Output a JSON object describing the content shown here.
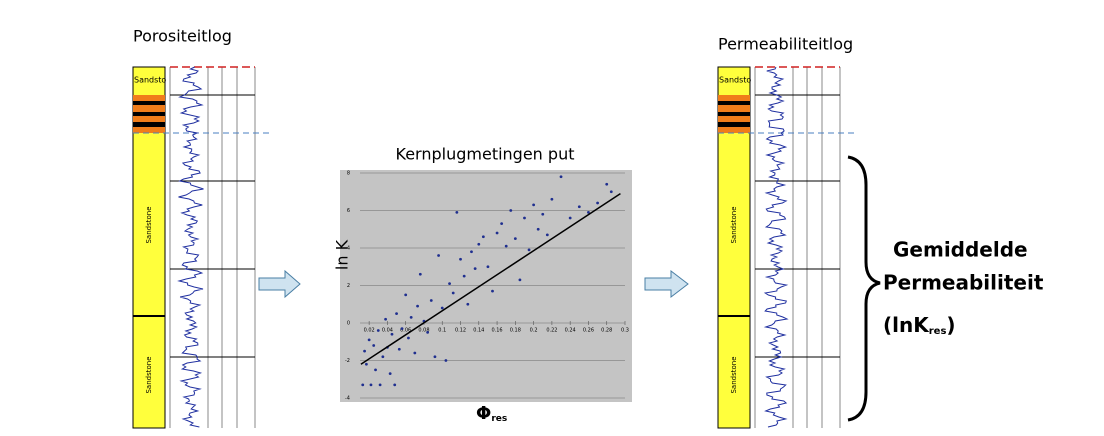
{
  "left_log": {
    "title": "Porositeitlog",
    "labels": [
      "Sandsto",
      "Sandstone",
      "Sandstone"
    ]
  },
  "right_log": {
    "title": "Permeabiliteitlog",
    "labels": [
      "Sandsto",
      "Sandstone",
      "Sandstone"
    ]
  },
  "chart_data": {
    "type": "scatter",
    "title": "Kernplugmetingen put",
    "y_label": "ln K",
    "x_label": "Φ",
    "x_label_sub": "res",
    "x": [
      0.013,
      0.015,
      0.017,
      0.02,
      0.022,
      0.025,
      0.027,
      0.03,
      0.032,
      0.035,
      0.038,
      0.04,
      0.043,
      0.045,
      0.048,
      0.05,
      0.053,
      0.056,
      0.06,
      0.063,
      0.066,
      0.07,
      0.073,
      0.076,
      0.08,
      0.084,
      0.088,
      0.092,
      0.096,
      0.1,
      0.104,
      0.108,
      0.112,
      0.116,
      0.12,
      0.124,
      0.128,
      0.132,
      0.136,
      0.14,
      0.145,
      0.15,
      0.155,
      0.16,
      0.165,
      0.17,
      0.175,
      0.18,
      0.185,
      0.19,
      0.195,
      0.2,
      0.205,
      0.21,
      0.215,
      0.22,
      0.23,
      0.24,
      0.25,
      0.26,
      0.27,
      0.28,
      0.285
    ],
    "values": [
      -3.3,
      -1.5,
      -2.2,
      -0.9,
      -3.3,
      -1.2,
      -2.5,
      -0.4,
      -3.3,
      -1.8,
      0.2,
      -1.3,
      -2.7,
      -0.6,
      -3.3,
      0.5,
      -1.4,
      -0.3,
      1.5,
      -0.8,
      0.3,
      -1.6,
      0.9,
      2.6,
      0.1,
      -0.5,
      1.2,
      -1.8,
      3.6,
      0.8,
      -2.0,
      2.1,
      1.6,
      5.9,
      3.4,
      2.5,
      1.0,
      3.8,
      2.9,
      4.2,
      4.6,
      3.0,
      1.7,
      4.8,
      5.3,
      4.1,
      6.0,
      4.5,
      2.3,
      5.6,
      3.9,
      6.3,
      5.0,
      5.8,
      4.7,
      6.6,
      7.8,
      5.6,
      6.2,
      5.9,
      6.4,
      7.4,
      7.0
    ],
    "color": "#1f2f8f",
    "trendline": {
      "x": [
        0.011,
        0.295
      ],
      "values": [
        -2.2,
        6.9
      ],
      "color": "#000000"
    },
    "xlim": [
      0.01,
      0.3
    ],
    "ylim": [
      -4,
      8
    ],
    "xticks": [
      0.02,
      0.04,
      0.06,
      0.08,
      0.1,
      0.12,
      0.14,
      0.16,
      0.18,
      0.2,
      0.22,
      0.24,
      0.26,
      0.28,
      0.3
    ],
    "yticks": [
      8,
      6,
      4,
      2,
      0,
      -2,
      -4
    ],
    "grid": true
  },
  "result": {
    "line1": "Gemiddelde",
    "line2": "Permeabiliteit",
    "line3": "(lnK",
    "line3_sub": "res",
    "line3_end": ")"
  }
}
